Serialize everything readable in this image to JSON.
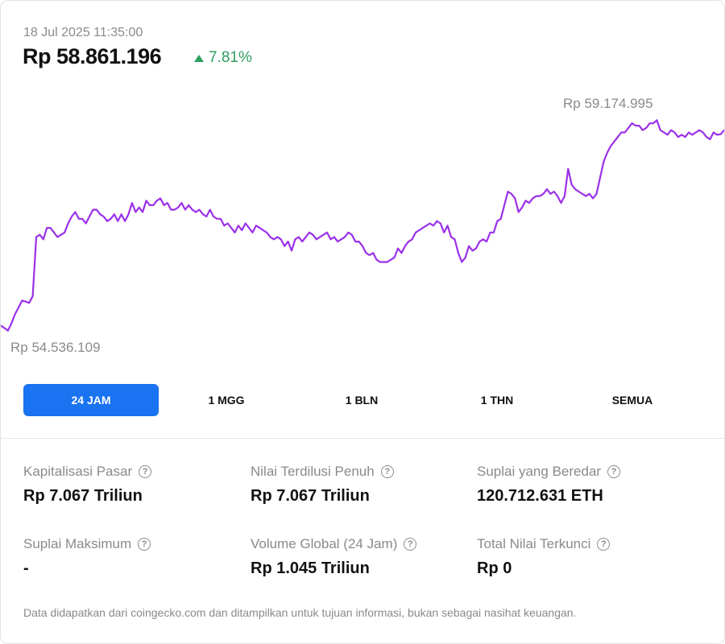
{
  "header": {
    "timestamp": "18 Jul 2025 11:35:00",
    "price": "Rp 58.861.196",
    "change": "7.81%",
    "change_direction": "up",
    "change_color": "#2f9e5f"
  },
  "chart_data": {
    "type": "line",
    "line_color": "#9b30e8",
    "y_high_label": "Rp 59.174.995",
    "y_low_label": "Rp 54.536.109",
    "ylim": [
      54536109,
      59174995
    ],
    "grid": false,
    "series": [
      {
        "values": [
          54650000,
          54600000,
          54540000,
          54700000,
          54900000,
          55050000,
          55200000,
          55180000,
          55150000,
          55300000,
          56600000,
          56650000,
          56550000,
          56800000,
          56800000,
          56700000,
          56600000,
          56650000,
          56700000,
          56900000,
          57050000,
          57150000,
          57000000,
          57000000,
          56900000,
          57050000,
          57200000,
          57200000,
          57100000,
          57050000,
          56950000,
          57000000,
          57100000,
          56950000,
          57100000,
          56950000,
          57100000,
          57350000,
          57150000,
          57250000,
          57150000,
          57400000,
          57300000,
          57300000,
          57400000,
          57450000,
          57300000,
          57350000,
          57200000,
          57200000,
          57250000,
          57350000,
          57200000,
          57300000,
          57200000,
          57150000,
          57200000,
          57100000,
          57050000,
          57200000,
          57050000,
          57000000,
          57000000,
          56850000,
          56900000,
          56800000,
          56700000,
          56850000,
          56750000,
          56900000,
          56800000,
          56700000,
          56850000,
          56800000,
          56750000,
          56700000,
          56600000,
          56550000,
          56600000,
          56550000,
          56400000,
          56500000,
          56300000,
          56550000,
          56600000,
          56500000,
          56600000,
          56700000,
          56650000,
          56550000,
          56600000,
          56650000,
          56700000,
          56550000,
          56600000,
          56500000,
          56550000,
          56600000,
          56700000,
          56650000,
          56500000,
          56500000,
          56400000,
          56250000,
          56200000,
          56250000,
          56100000,
          56050000,
          56050000,
          56050000,
          56100000,
          56150000,
          56350000,
          56250000,
          56400000,
          56500000,
          56550000,
          56700000,
          56750000,
          56800000,
          56850000,
          56900000,
          56850000,
          56950000,
          56900000,
          56700000,
          56850000,
          56600000,
          56550000,
          56250000,
          56050000,
          56150000,
          56400000,
          56300000,
          56350000,
          56500000,
          56550000,
          56500000,
          56700000,
          56700000,
          56950000,
          57000000,
          57300000,
          57600000,
          57550000,
          57450000,
          57150000,
          57250000,
          57400000,
          57350000,
          57450000,
          57500000,
          57500000,
          57550000,
          57650000,
          57550000,
          57600000,
          57500000,
          57350000,
          57500000,
          58100000,
          57750000,
          57650000,
          57600000,
          57550000,
          57500000,
          57550000,
          57450000,
          57550000,
          57900000,
          58250000,
          58450000,
          58600000,
          58700000,
          58800000,
          58900000,
          58900000,
          59000000,
          59100000,
          59050000,
          59050000,
          58950000,
          59000000,
          59100000,
          59100000,
          59170000,
          58950000,
          58900000,
          58850000,
          58950000,
          58900000,
          58800000,
          58850000,
          58800000,
          58900000,
          58850000,
          58900000,
          58950000,
          58900000,
          58800000,
          58750000,
          58900000,
          58850000,
          58860000,
          58950000
        ]
      }
    ]
  },
  "tabs": [
    {
      "label": "24 JAM",
      "active": true
    },
    {
      "label": "1 MGG",
      "active": false
    },
    {
      "label": "1 BLN",
      "active": false
    },
    {
      "label": "1 THN",
      "active": false
    },
    {
      "label": "SEMUA",
      "active": false
    }
  ],
  "stats": [
    {
      "label": "Kapitalisasi Pasar",
      "value": "Rp 7.067 Triliun"
    },
    {
      "label": "Nilai Terdilusi Penuh",
      "value": "Rp 7.067 Triliun"
    },
    {
      "label": "Suplai yang Beredar",
      "value": "120.712.631 ETH"
    },
    {
      "label": "Suplai Maksimum",
      "value": "-"
    },
    {
      "label": "Volume Global (24 Jam)",
      "value": "Rp 1.045 Triliun"
    },
    {
      "label": "Total Nilai Terkunci",
      "value": "Rp 0"
    }
  ],
  "help_glyph": "?",
  "footer": "Data didapatkan dari coingecko.com dan ditampilkan untuk tujuan informasi, bukan sebagai nasihat keuangan."
}
